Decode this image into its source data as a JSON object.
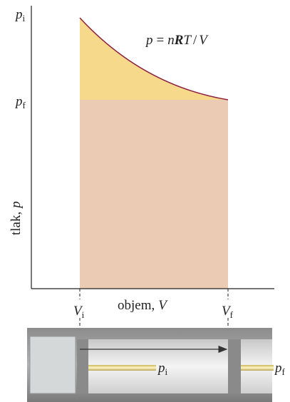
{
  "y_axis": {
    "label": "tlak,",
    "variable": "p",
    "ticks": [
      {
        "symbol": "p",
        "sub": "i"
      },
      {
        "symbol": "p",
        "sub": "f"
      }
    ]
  },
  "x_axis": {
    "label": "objem,",
    "variable": "V",
    "ticks": [
      {
        "symbol": "V",
        "sub": "i"
      },
      {
        "symbol": "V",
        "sub": "f"
      }
    ]
  },
  "curve_label": [
    "p",
    "=",
    "n",
    "R",
    "T",
    "/",
    "V"
  ],
  "cylinder": {
    "labels": [
      {
        "symbol": "p",
        "sub": "i"
      },
      {
        "symbol": "p",
        "sub": "f"
      }
    ]
  }
}
